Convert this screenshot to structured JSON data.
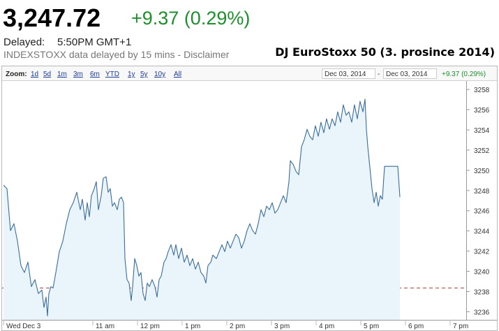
{
  "header": {
    "price": "3,247.72",
    "change": "+9.37 (0.29%)",
    "delayed_label": "Delayed:",
    "delayed_time": "5:50PM GMT+1",
    "note": "INDEXSTOXX data delayed by 15 mins - Disclaimer",
    "title": "DJ EuroStoxx 50 (3. prosince 2014)"
  },
  "toolbar": {
    "zoom_label": "Zoom:",
    "zoom_options": [
      "1d",
      "5d",
      "1m",
      "3m",
      "6m",
      "YTD",
      "1y",
      "5y",
      "10y",
      "All"
    ],
    "range_start": "Dec 03, 2014",
    "range_separator": "-",
    "range_end": "Dec 03, 2014",
    "range_change": "+9.37 (0.29%)"
  },
  "chart_data": {
    "type": "line",
    "color": "#3a6d9e",
    "fill_color": "#e9f4fb",
    "previous_close": 3238.35,
    "previous_close_color": "#a83a3a",
    "grid": false,
    "xlim": [
      9,
      19.36
    ],
    "ylim": [
      3235.2,
      3258.7
    ],
    "yticks": [
      3236,
      3238,
      3240,
      3242,
      3244,
      3246,
      3248,
      3250,
      3252,
      3254,
      3256,
      3258
    ],
    "xticks": [
      {
        "value": 9,
        "label": "Wed Dec 3"
      },
      {
        "value": 11,
        "label": "11 am"
      },
      {
        "value": 12,
        "label": "12 pm"
      },
      {
        "value": 13,
        "label": "1 pm"
      },
      {
        "value": 14,
        "label": "2 pm"
      },
      {
        "value": 15,
        "label": "3 pm"
      },
      {
        "value": 16,
        "label": "4 pm"
      },
      {
        "value": 17,
        "label": "5 pm"
      },
      {
        "value": 18,
        "label": "6 pm"
      },
      {
        "value": 19,
        "label": "7 pm"
      }
    ],
    "x": [
      9.0,
      9.078,
      9.156,
      9.234,
      9.313,
      9.391,
      9.469,
      9.547,
      9.625,
      9.703,
      9.781,
      9.859,
      9.906,
      9.953,
      9.984,
      10.016,
      10.063,
      10.109,
      10.172,
      10.25,
      10.328,
      10.406,
      10.484,
      10.563,
      10.641,
      10.719,
      10.766,
      10.828,
      10.875,
      10.922,
      10.969,
      11.031,
      11.078,
      11.125,
      11.188,
      11.234,
      11.297,
      11.344,
      11.391,
      11.438,
      11.484,
      11.547,
      11.594,
      11.641,
      11.688,
      11.719,
      11.766,
      11.813,
      11.859,
      11.891,
      11.938,
      11.984,
      12.031,
      12.078,
      12.125,
      12.172,
      12.219,
      12.266,
      12.328,
      12.391,
      12.438,
      12.484,
      12.531,
      12.594,
      12.641,
      12.688,
      12.75,
      12.813,
      12.859,
      12.922,
      12.984,
      13.047,
      13.109,
      13.172,
      13.234,
      13.297,
      13.359,
      13.422,
      13.484,
      13.531,
      13.578,
      13.641,
      13.688,
      13.766,
      13.828,
      13.891,
      13.953,
      14.016,
      14.078,
      14.141,
      14.203,
      14.266,
      14.328,
      14.391,
      14.453,
      14.516,
      14.578,
      14.641,
      14.703,
      14.766,
      14.828,
      14.891,
      14.953,
      15.016,
      15.078,
      15.141,
      15.203,
      15.266,
      15.328,
      15.391,
      15.422,
      15.484,
      15.547,
      15.609,
      15.672,
      15.734,
      15.797,
      15.859,
      15.922,
      15.984,
      16.047,
      16.109,
      16.172,
      16.234,
      16.297,
      16.359,
      16.422,
      16.484,
      16.547,
      16.609,
      16.672,
      16.734,
      16.797,
      16.859,
      16.922,
      16.984,
      17.047,
      17.094,
      17.125,
      17.156,
      17.203,
      17.25,
      17.297,
      17.344,
      17.391,
      17.438,
      17.484,
      17.531,
      17.828,
      17.875
    ],
    "values": [
      3248.53,
      3248.18,
      3244.03,
      3244.72,
      3242.99,
      3240.57,
      3239.88,
      3240.91,
      3238.49,
      3239.18,
      3237.8,
      3238.15,
      3236.42,
      3237.45,
      3235.58,
      3237.8,
      3238.49,
      3238.35,
      3239.88,
      3241.95,
      3242.99,
      3244.72,
      3246.1,
      3246.8,
      3247.83,
      3246.1,
      3247.14,
      3245.07,
      3246.8,
      3245.41,
      3247.49,
      3248.18,
      3248.87,
      3246.1,
      3247.49,
      3249.22,
      3249.36,
      3247.83,
      3248.18,
      3246.45,
      3246.8,
      3246.1,
      3247.14,
      3247.35,
      3246.8,
      3241.26,
      3239.18,
      3238.84,
      3237.11,
      3238.49,
      3241.26,
      3240.57,
      3239.53,
      3239.88,
      3237.8,
      3237.11,
      3238.84,
      3238.49,
      3239.18,
      3238.49,
      3237.45,
      3239.18,
      3239.53,
      3240.91,
      3241.26,
      3241.95,
      3242.64,
      3241.61,
      3242.64,
      3241.26,
      3242.3,
      3240.91,
      3241.61,
      3240.57,
      3241.26,
      3240.22,
      3240.91,
      3239.88,
      3239.53,
      3238.84,
      3240.57,
      3240.91,
      3241.61,
      3241.26,
      3241.95,
      3242.64,
      3241.95,
      3242.99,
      3242.3,
      3242.99,
      3243.68,
      3243.34,
      3242.3,
      3242.99,
      3244.03,
      3244.72,
      3244.03,
      3243.68,
      3244.72,
      3246.1,
      3245.41,
      3246.45,
      3246.1,
      3246.8,
      3245.76,
      3246.1,
      3246.8,
      3247.49,
      3246.8,
      3248.87,
      3250.95,
      3250.6,
      3249.91,
      3249.56,
      3252.33,
      3253.02,
      3254.06,
      3253.37,
      3253.02,
      3254.41,
      3253.37,
      3254.75,
      3253.72,
      3255.1,
      3254.06,
      3255.1,
      3254.41,
      3255.79,
      3254.75,
      3256.48,
      3255.45,
      3255.79,
      3254.75,
      3256.48,
      3255.1,
      3256.83,
      3255.79,
      3257.04,
      3254.06,
      3252.33,
      3250.26,
      3248.18,
      3246.8,
      3247.83,
      3246.45,
      3247.49,
      3247.14,
      3250.39,
      3250.39,
      3247.35
    ]
  }
}
